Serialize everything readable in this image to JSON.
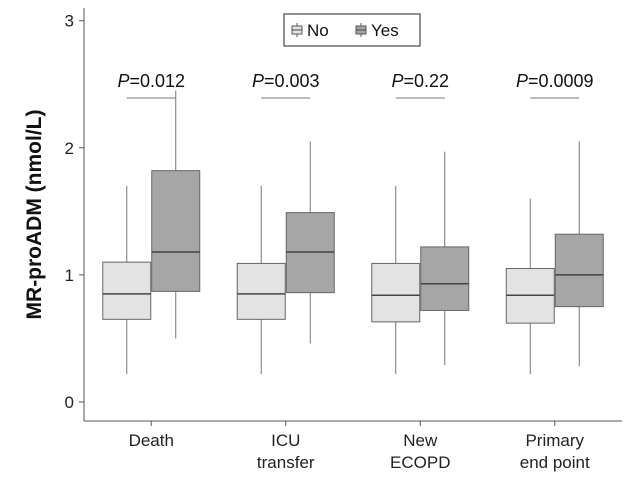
{
  "chart_data": {
    "type": "box",
    "ylabel": "MR-proADM (nmol/L)",
    "ylim": [
      -0.15,
      3.1
    ],
    "yticks": [
      0,
      1,
      2,
      3
    ],
    "grid": false,
    "legend_position": "top-center",
    "categories": [
      {
        "lines": [
          "Death"
        ]
      },
      {
        "lines": [
          "ICU",
          "transfer"
        ]
      },
      {
        "lines": [
          "New",
          "ECOPD"
        ]
      },
      {
        "lines": [
          "Primary",
          "end point"
        ]
      }
    ],
    "series": [
      {
        "name": "No",
        "color": "#e3e3e3"
      },
      {
        "name": "Yes",
        "color": "#a6a6a6"
      }
    ],
    "boxes": [
      [
        {
          "min": 0.22,
          "q1": 0.65,
          "median": 0.85,
          "q3": 1.1,
          "max": 1.7
        },
        {
          "min": 0.5,
          "q1": 0.87,
          "median": 1.18,
          "q3": 1.82,
          "max": 2.45
        }
      ],
      [
        {
          "min": 0.22,
          "q1": 0.65,
          "median": 0.85,
          "q3": 1.09,
          "max": 1.7
        },
        {
          "min": 0.46,
          "q1": 0.86,
          "median": 1.18,
          "q3": 1.49,
          "max": 2.05
        }
      ],
      [
        {
          "min": 0.22,
          "q1": 0.63,
          "median": 0.84,
          "q3": 1.09,
          "max": 1.7
        },
        {
          "min": 0.29,
          "q1": 0.72,
          "median": 0.93,
          "q3": 1.22,
          "max": 1.97
        }
      ],
      [
        {
          "min": 0.22,
          "q1": 0.62,
          "median": 0.84,
          "q3": 1.05,
          "max": 1.6
        },
        {
          "min": 0.28,
          "q1": 0.75,
          "median": 1.0,
          "q3": 1.32,
          "max": 2.05
        }
      ]
    ],
    "annotations": [
      {
        "prefix": "P",
        "value": "=0.012"
      },
      {
        "prefix": "P",
        "value": "=0.003"
      },
      {
        "prefix": "P",
        "value": "=0.22"
      },
      {
        "prefix": "P",
        "value": "=0.0009"
      }
    ]
  }
}
